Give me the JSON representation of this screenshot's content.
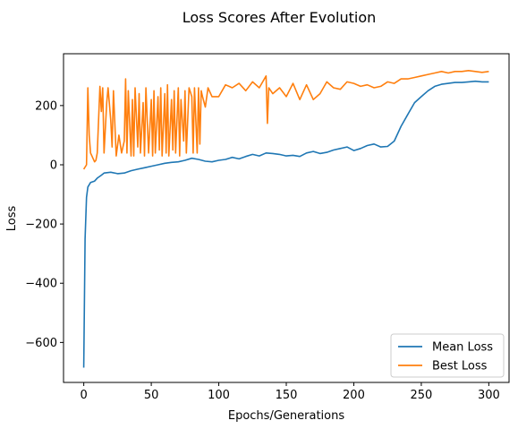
{
  "chart_data": {
    "type": "line",
    "title": "Loss Scores After Evolution",
    "xlabel": "Epochs/Generations",
    "ylabel": "Loss",
    "xlim": [
      -15,
      315
    ],
    "ylim": [
      -735,
      375
    ],
    "xticks": [
      0,
      50,
      100,
      150,
      200,
      250,
      300
    ],
    "xtick_labels": [
      "0",
      "50",
      "100",
      "150",
      "200",
      "250",
      "300"
    ],
    "yticks": [
      -600,
      -400,
      -200,
      0,
      200
    ],
    "ytick_labels": [
      "−600",
      "−400",
      "−200",
      "0",
      "200"
    ],
    "grid": false,
    "legend_position": "bottom-right",
    "series": [
      {
        "name": "Mean Loss",
        "color": "#1f77b4",
        "x": [
          0,
          1,
          2,
          3,
          5,
          8,
          10,
          13,
          15,
          20,
          25,
          30,
          35,
          40,
          45,
          50,
          55,
          60,
          65,
          70,
          75,
          80,
          85,
          90,
          95,
          100,
          105,
          110,
          115,
          120,
          125,
          130,
          135,
          140,
          145,
          150,
          155,
          160,
          165,
          170,
          175,
          180,
          185,
          190,
          195,
          200,
          205,
          210,
          215,
          220,
          225,
          230,
          235,
          240,
          245,
          250,
          255,
          260,
          265,
          270,
          275,
          280,
          285,
          290,
          295,
          300
        ],
        "y": [
          -685,
          -250,
          -110,
          -75,
          -60,
          -55,
          -45,
          -35,
          -28,
          -25,
          -30,
          -28,
          -20,
          -15,
          -10,
          -5,
          0,
          5,
          8,
          10,
          15,
          22,
          18,
          12,
          10,
          15,
          18,
          25,
          20,
          28,
          35,
          30,
          40,
          38,
          35,
          30,
          32,
          28,
          40,
          45,
          38,
          42,
          50,
          55,
          60,
          48,
          55,
          65,
          70,
          60,
          62,
          80,
          130,
          170,
          210,
          230,
          250,
          265,
          272,
          275,
          278,
          278,
          280,
          282,
          280,
          280
        ]
      },
      {
        "name": "Best Loss",
        "color": "#ff7f0e",
        "x": [
          0,
          2,
          3,
          4,
          5,
          6,
          8,
          9,
          10,
          12,
          13,
          14,
          15,
          17,
          18,
          20,
          21,
          22,
          24,
          26,
          28,
          30,
          31,
          32,
          33,
          35,
          36,
          37,
          38,
          40,
          41,
          42,
          44,
          45,
          46,
          48,
          50,
          51,
          52,
          53,
          55,
          56,
          57,
          58,
          60,
          61,
          62,
          63,
          65,
          66,
          67,
          68,
          70,
          71,
          72,
          74,
          75,
          76,
          78,
          80,
          81,
          82,
          84,
          85,
          86,
          87,
          88,
          90,
          92,
          95,
          100,
          105,
          110,
          115,
          120,
          125,
          130,
          135,
          136,
          137,
          140,
          145,
          150,
          155,
          160,
          165,
          170,
          175,
          180,
          185,
          190,
          195,
          200,
          205,
          210,
          215,
          220,
          225,
          230,
          235,
          240,
          245,
          250,
          255,
          260,
          265,
          270,
          275,
          280,
          285,
          290,
          295,
          300
        ],
        "y": [
          -15,
          0,
          260,
          100,
          40,
          30,
          10,
          15,
          40,
          265,
          180,
          260,
          40,
          210,
          260,
          150,
          60,
          250,
          30,
          100,
          40,
          80,
          290,
          40,
          250,
          30,
          220,
          30,
          260,
          60,
          240,
          40,
          210,
          30,
          260,
          40,
          220,
          30,
          250,
          40,
          230,
          50,
          260,
          30,
          240,
          40,
          270,
          30,
          220,
          50,
          250,
          40,
          260,
          30,
          220,
          80,
          250,
          40,
          260,
          230,
          40,
          260,
          40,
          260,
          70,
          250,
          230,
          195,
          260,
          230,
          230,
          270,
          260,
          275,
          250,
          280,
          260,
          300,
          140,
          260,
          240,
          260,
          230,
          275,
          220,
          270,
          220,
          240,
          280,
          260,
          255,
          280,
          275,
          265,
          270,
          260,
          265,
          280,
          275,
          290,
          290,
          295,
          300,
          305,
          310,
          315,
          310,
          315,
          315,
          318,
          315,
          312,
          315
        ]
      }
    ]
  }
}
